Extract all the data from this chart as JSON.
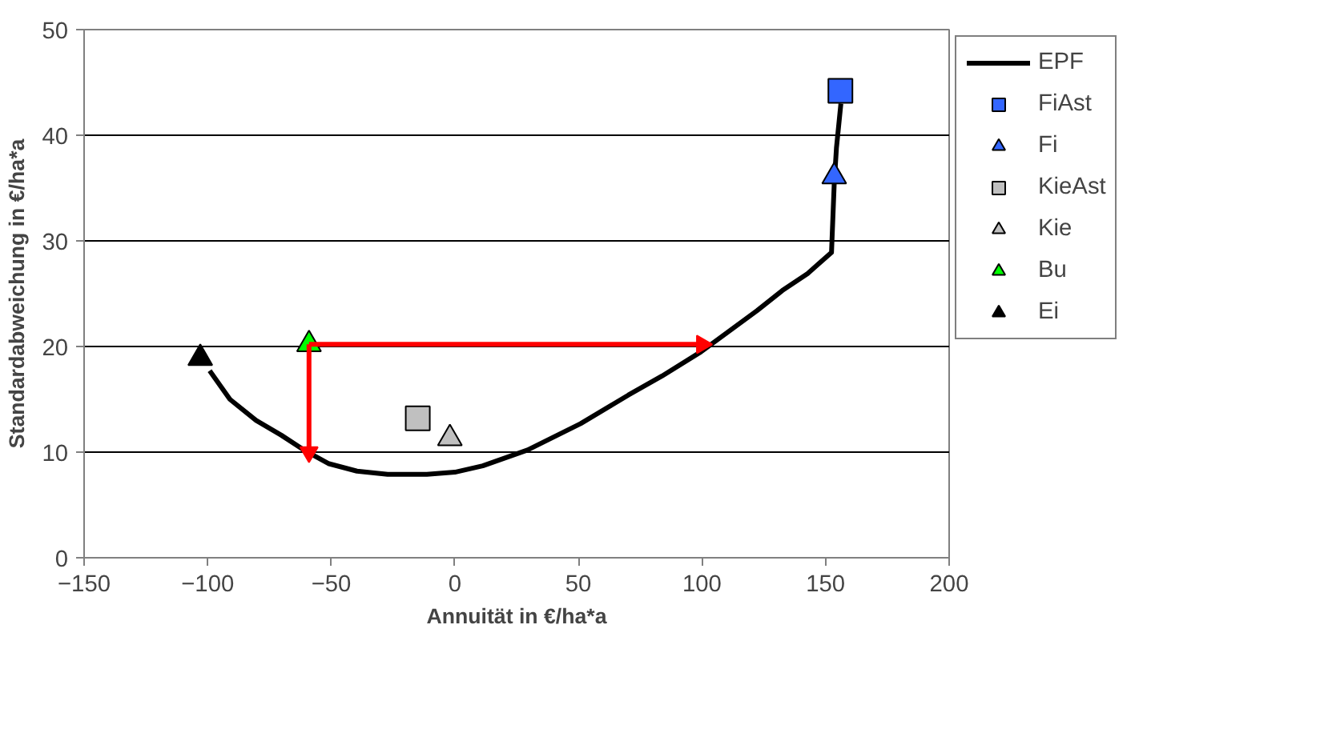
{
  "chart_data": {
    "type": "scatter",
    "xlabel": "Annuität in €/ha*a",
    "ylabel": "Standardabweichung in €/ha*a",
    "xlim": [
      -150,
      200
    ],
    "xticks": [
      -150,
      -100,
      -50,
      0,
      50,
      100,
      150,
      200
    ],
    "ylim": [
      0,
      50
    ],
    "yticks": [
      0,
      10,
      20,
      30,
      40,
      50
    ],
    "grid": "y",
    "legend": "right",
    "series": [
      {
        "name": "EPF",
        "type": "line",
        "color": "#000000",
        "marker": "none",
        "x": [
          -99.2,
          -91.0,
          -80.4,
          -70.2,
          -61.1,
          -50.9,
          -39.6,
          -27.2,
          -11.3,
          0,
          11.3,
          29.4,
          50.9,
          70.2,
          83.8,
          99.6,
          122.3,
          132.5,
          142.7,
          152.4,
          153.5,
          154.4,
          156.2
        ],
        "values": [
          17.7,
          15.0,
          13.0,
          11.6,
          10.2,
          8.9,
          8.2,
          7.9,
          7.9,
          8.1,
          8.7,
          10.2,
          12.7,
          15.4,
          17.2,
          19.5,
          23.4,
          25.3,
          26.9,
          28.9,
          35.4,
          38.8,
          43.0
        ]
      },
      {
        "name": "FiAst",
        "marker": "square",
        "color": "#3366ff",
        "x": [
          156
        ],
        "values": [
          44.2
        ]
      },
      {
        "name": "Fi",
        "marker": "triangle",
        "color": "#3366ff",
        "x": [
          153.5
        ],
        "values": [
          36.1
        ]
      },
      {
        "name": "KieAst",
        "marker": "square",
        "color": "#c0c0c0",
        "x": [
          -15
        ],
        "values": [
          13.2
        ]
      },
      {
        "name": "Kie",
        "marker": "triangle",
        "color": "#c0c0c0",
        "x": [
          -2
        ],
        "values": [
          11.3
        ]
      },
      {
        "name": "Bu",
        "marker": "triangle",
        "color": "#00ff00",
        "x": [
          -59
        ],
        "values": [
          20.2
        ]
      },
      {
        "name": "Ei",
        "marker": "triangle",
        "color": "#000000",
        "x": [
          -103
        ],
        "values": [
          18.9
        ]
      },
      {
        "type": "line",
        "color": "#ff0000",
        "marker": "triangle",
        "x": [
          -59,
          100
        ],
        "values": [
          20.2,
          20.2
        ]
      },
      {
        "type": "line",
        "color": "#ff0000",
        "marker": "triangle",
        "x": [
          -59,
          -59
        ],
        "values": [
          20.2,
          10
        ]
      }
    ]
  }
}
